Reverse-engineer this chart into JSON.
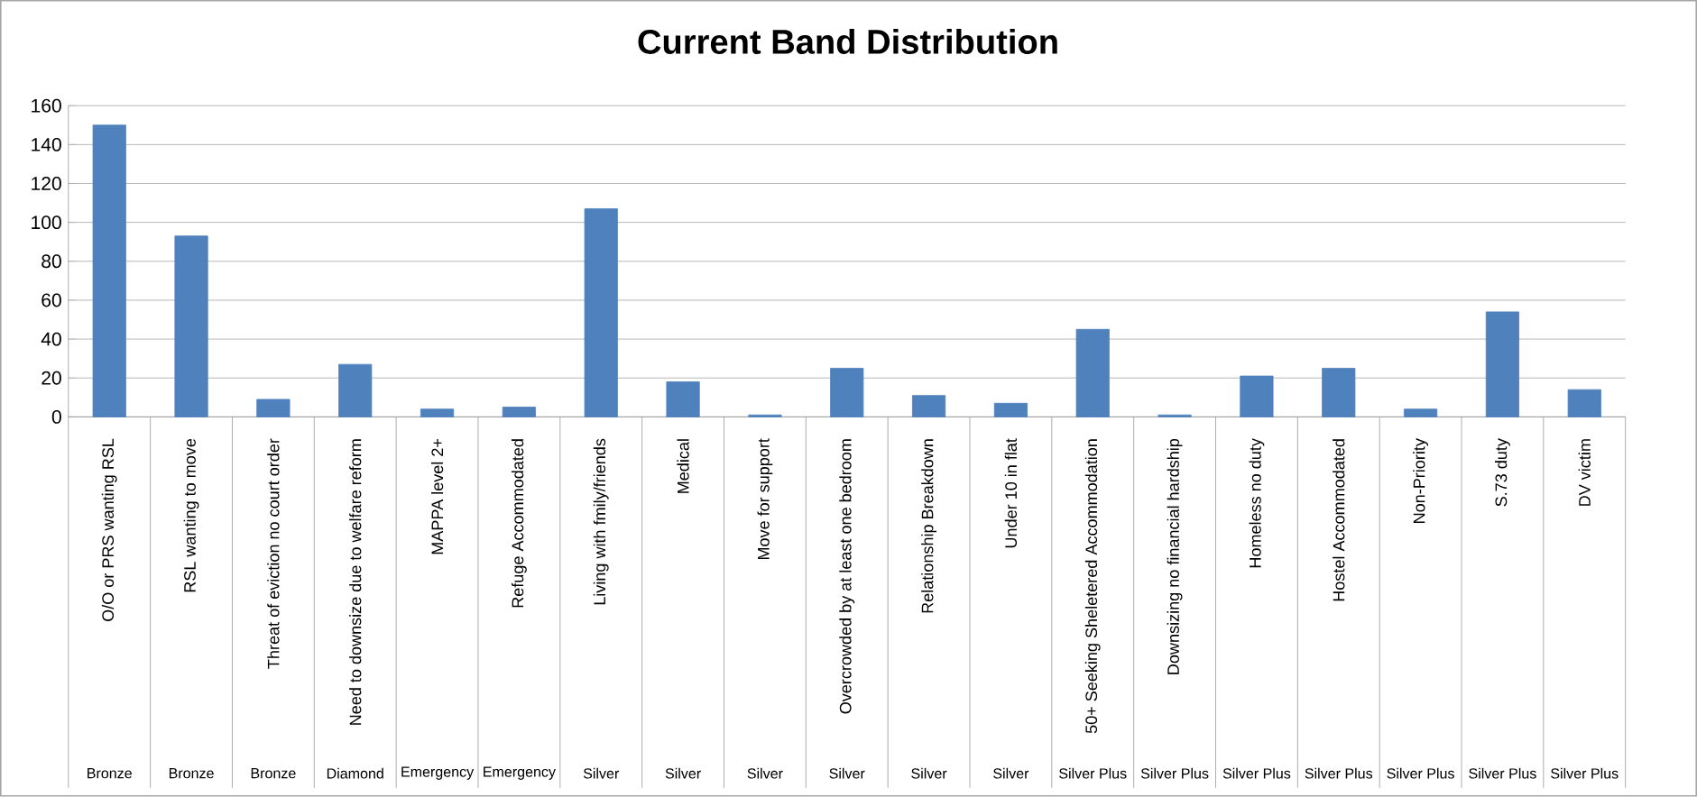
{
  "chart_data": {
    "type": "bar",
    "title": "Current Band Distribution",
    "categories": [
      "O/O or PRS wanting RSL",
      "RSL wanting to move",
      "Threat of eviction no court order",
      "Need to downsize due to welfare reform",
      "MAPPA level 2+",
      "Refuge Accommodated",
      "Living with fmily/friends",
      "Medical",
      "Move for support",
      "Overcrowded by at least one bedroom",
      "Relationship Breakdown",
      "Under 10 in flat",
      "50+ Seeking Sheletered Accommodation",
      "Downsizing no financial hardship",
      "Homeless no duty",
      "Hostel Accommodated",
      "Non-Priority",
      "S.73 duty",
      "DV victim"
    ],
    "values": [
      150,
      93,
      9,
      27,
      4,
      5,
      107,
      18,
      1,
      25,
      11,
      7,
      45,
      1,
      21,
      25,
      4,
      54,
      14
    ],
    "color": "#4f81bd",
    "ylim": [
      0,
      160
    ],
    "yticks": [
      0,
      20,
      40,
      60,
      80,
      100,
      120,
      140,
      160
    ],
    "grid": "y",
    "annotations": [
      "Bronze",
      "Bronze",
      "Bronze",
      "Diamond",
      "Emergency",
      "Emergency",
      "Silver",
      "Silver",
      "Silver",
      "Silver",
      "Silver",
      "Silver",
      "Silver Plus",
      "Silver Plus",
      "Silver Plus",
      "Silver Plus",
      "Silver Plus",
      "Silver Plus",
      "Silver Plus"
    ]
  }
}
